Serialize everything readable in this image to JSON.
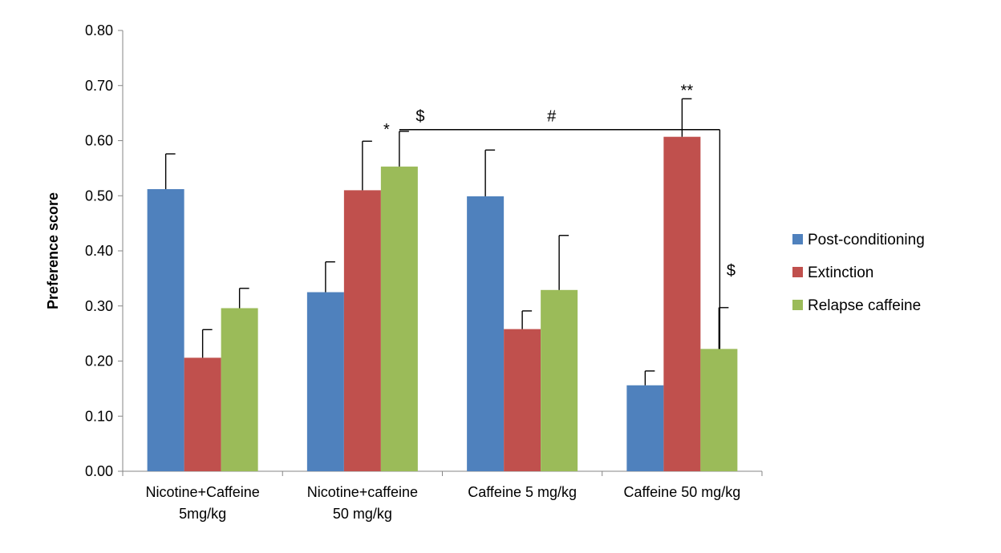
{
  "chart_data": {
    "type": "bar",
    "ylabel": "Preference score",
    "xlabel": "",
    "ylim": [
      0,
      0.8
    ],
    "yticks": [
      "0.00",
      "0.10",
      "0.20",
      "0.30",
      "0.40",
      "0.50",
      "0.60",
      "0.70",
      "0.80"
    ],
    "ytick_values": [
      0,
      0.1,
      0.2,
      0.3,
      0.4,
      0.5,
      0.6,
      0.7,
      0.8
    ],
    "grid": false,
    "legend_position": "right",
    "categories": [
      [
        "Nicotine+Caffeine",
        "5mg/kg"
      ],
      [
        "Nicotine+caffeine",
        "50 mg/kg"
      ],
      [
        "Caffeine 5 mg/kg"
      ],
      [
        "Caffeine 50 mg/kg"
      ]
    ],
    "series": [
      {
        "name": "Post-conditioning",
        "color": "#4F81BD",
        "values": [
          0.512,
          0.325,
          0.499,
          0.156
        ],
        "errors": [
          0.064,
          0.055,
          0.084,
          0.026
        ]
      },
      {
        "name": "Extinction",
        "color": "#C0504D",
        "values": [
          0.206,
          0.51,
          0.258,
          0.607
        ],
        "errors": [
          0.051,
          0.089,
          0.033,
          0.069
        ]
      },
      {
        "name": "Relapse caffeine",
        "color": "#9BBB59",
        "values": [
          0.296,
          0.553,
          0.329,
          0.222
        ],
        "errors": [
          0.036,
          0.064,
          0.099,
          0.075
        ]
      }
    ],
    "annotations": [
      {
        "text": "*",
        "category": 1,
        "series": 2
      },
      {
        "text": "$",
        "category": 1,
        "series": 2
      },
      {
        "text": "#",
        "bracket": true
      },
      {
        "text": "**",
        "category": 3,
        "series": 1
      },
      {
        "text": "$",
        "category": 3,
        "series": 2
      }
    ]
  }
}
